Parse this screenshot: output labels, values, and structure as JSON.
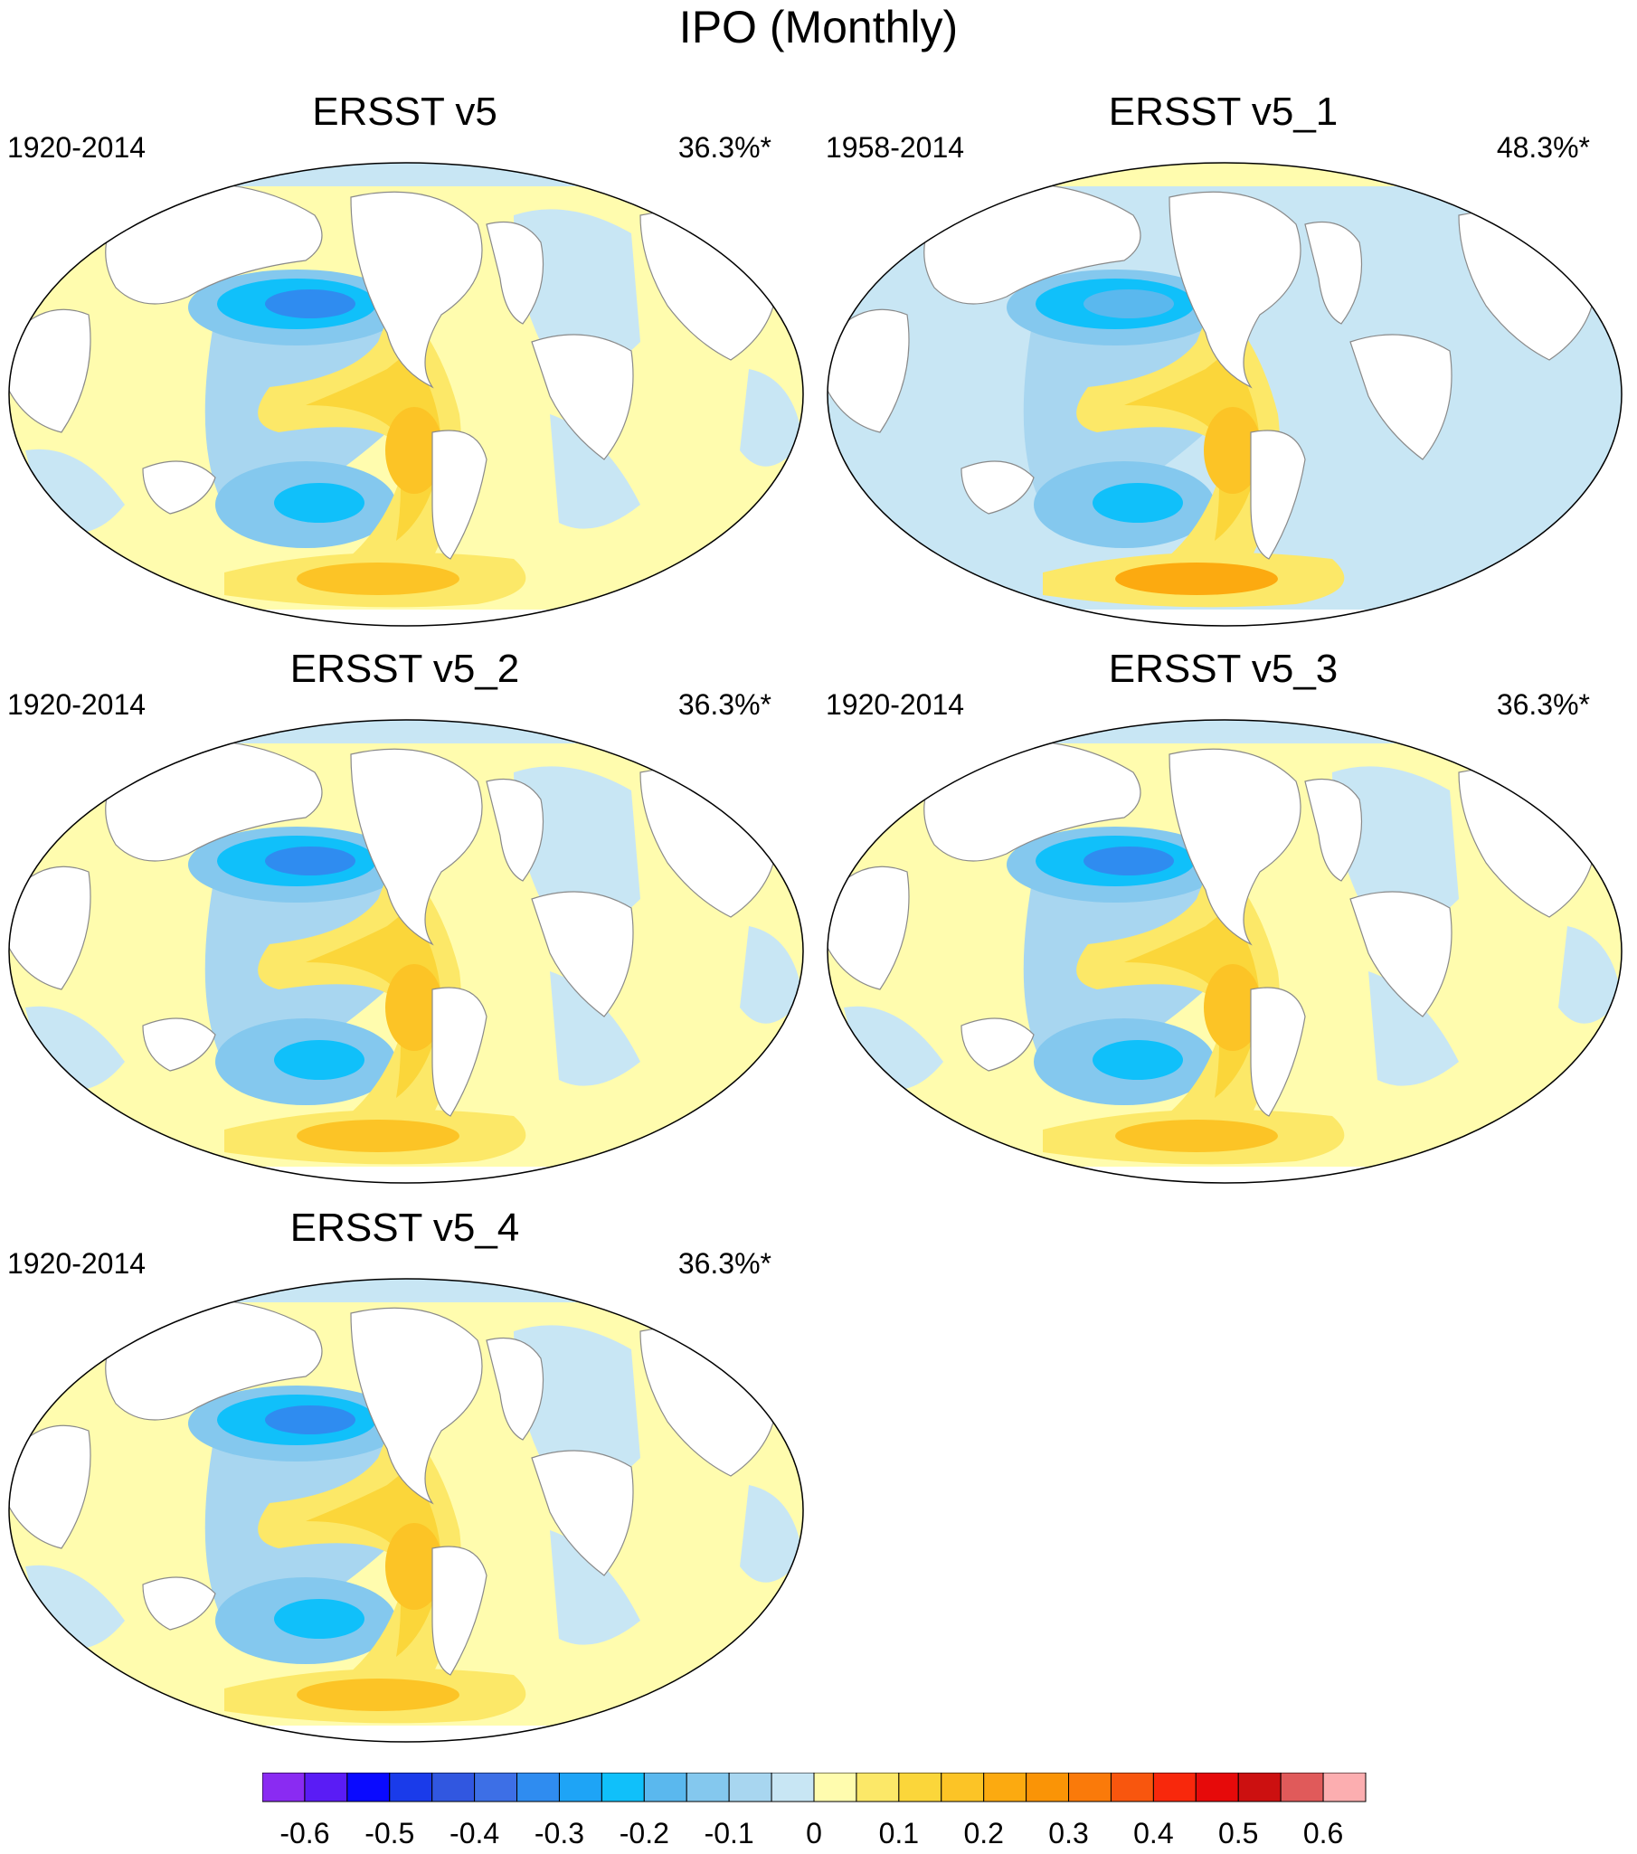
{
  "figure_title": "IPO (Monthly)",
  "panels": [
    {
      "title": "ERSST v5",
      "period": "1920-2014",
      "variance": "36.3%*"
    },
    {
      "title": "ERSST v5_1",
      "period": "1958-2014",
      "variance": "48.3%*"
    },
    {
      "title": "ERSST v5_2",
      "period": "1920-2014",
      "variance": "36.3%*"
    },
    {
      "title": "ERSST v5_3",
      "period": "1920-2014",
      "variance": "36.3%*"
    },
    {
      "title": "ERSST v5_4",
      "period": "1920-2014",
      "variance": "36.3%*"
    }
  ],
  "colorbar": {
    "colors": [
      "#8a2bf2",
      "#5a1cf5",
      "#0a0aff",
      "#1a3bea",
      "#3157e0",
      "#3d6fe6",
      "#2f8cf0",
      "#1ea4f6",
      "#10c0fa",
      "#5ab8ee",
      "#84c8ee",
      "#a8d6f0",
      "#c8e6f4",
      "#fffcae",
      "#fce868",
      "#fbd63a",
      "#fcc426",
      "#fcaa10",
      "#fa9406",
      "#fa7a0a",
      "#f8560e",
      "#f8280c",
      "#e60a0a",
      "#cc1010",
      "#e05a5a",
      "#fcaeb0"
    ],
    "tick_labels": [
      "-0.6",
      "-0.5",
      "-0.4",
      "-0.3",
      "-0.2",
      "-0.1",
      "0",
      "0.1",
      "0.2",
      "0.3",
      "0.4",
      "0.5",
      "0.6"
    ]
  }
}
